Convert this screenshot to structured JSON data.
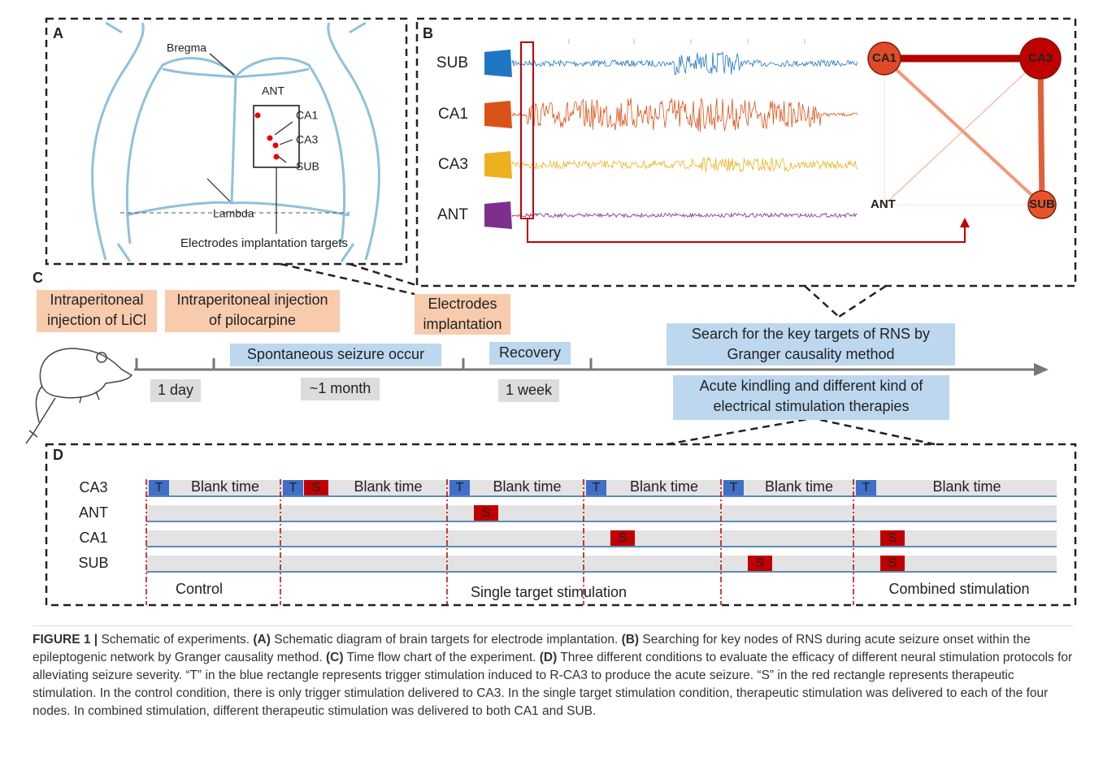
{
  "panel_a": {
    "letter": "A",
    "landmarks": [
      "Bregma",
      "Lambda"
    ],
    "targets": [
      "ANT",
      "CA1",
      "CA3",
      "SUB"
    ],
    "note": "Electrodes implantation targets"
  },
  "panel_b": {
    "letter": "B",
    "channels": [
      {
        "name": "SUB",
        "color": "#1f77c4"
      },
      {
        "name": "CA1",
        "color": "#d95319"
      },
      {
        "name": "CA3",
        "color": "#edb120"
      },
      {
        "name": "ANT",
        "color": "#7e2f8e"
      }
    ],
    "nodes": [
      "CA1",
      "CA3",
      "ANT",
      "SUB"
    ]
  },
  "panel_c": {
    "letter": "C",
    "steps": [
      {
        "lines": [
          "Intraperitoneal",
          "injection of LiCl"
        ]
      },
      {
        "lines": [
          "Intraperitoneal injection",
          "of pilocarpine"
        ]
      },
      {
        "lines": [
          "Electrodes",
          "implantation"
        ]
      }
    ],
    "events": [
      "Spontaneous seizure occur",
      "Recovery"
    ],
    "durations": [
      "1 day",
      "~1 month",
      "1 week"
    ],
    "outcomes": [
      {
        "lines": [
          "Search for the key targets of RNS by",
          "Granger causality method"
        ]
      },
      {
        "lines": [
          "Acute kindling and different kind of",
          "electrical stimulation therapies"
        ]
      }
    ]
  },
  "panel_d": {
    "letter": "D",
    "rows": [
      "CA3",
      "ANT",
      "CA1",
      "SUB"
    ],
    "columns": [
      {
        "cells": [
          [
            "T"
          ],
          [],
          [],
          []
        ],
        "blank": "Blank time"
      },
      {
        "cells": [
          [
            "T",
            "S"
          ],
          [],
          [],
          []
        ],
        "blank": "Blank time"
      },
      {
        "cells": [
          [
            "T"
          ],
          [
            "S"
          ],
          [],
          []
        ],
        "blank": "Blank time"
      },
      {
        "cells": [
          [
            "T"
          ],
          [],
          [
            "S"
          ],
          []
        ],
        "blank": "Blank time"
      },
      {
        "cells": [
          [
            "T"
          ],
          [],
          [],
          [
            "S"
          ]
        ],
        "blank": "Blank time"
      },
      {
        "cells": [
          [
            "T"
          ],
          [],
          [
            "S"
          ],
          [
            "S"
          ]
        ],
        "blank": "Blank time"
      }
    ],
    "groups": [
      "Control",
      "Single target stimulation",
      "Combined stimulation"
    ]
  },
  "caption": [
    {
      "text": "FIGURE 1 |",
      "bold": true
    },
    {
      "text": " Schematic of experiments. ",
      "bold": false
    },
    {
      "text": "(A)",
      "bold": true
    },
    {
      "text": " Schematic diagram of brain targets for electrode implantation. ",
      "bold": false
    },
    {
      "text": "(B)",
      "bold": true
    },
    {
      "text": " Searching for key nodes of RNS during acute seizure onset within the epileptogenic network by Granger causality method. ",
      "bold": false
    },
    {
      "text": "(C)",
      "bold": true
    },
    {
      "text": " Time flow chart of the experiment. ",
      "bold": false
    },
    {
      "text": "(D)",
      "bold": true
    },
    {
      "text": " Three different conditions to evaluate the efficacy of different neural stimulation protocols for alleviating seizure severity. “T” in the blue rectangle represents trigger stimulation induced to R-CA3 to produce the acute seizure. “S” in the red rectangle represents therapeutic stimulation. In the control condition, there is only trigger stimulation delivered to CA3. In the single target stimulation condition, therapeutic stimulation was delivered to each of the four nodes. In combined stimulation, different therapeutic stimulation was delivered to both CA1 and SUB.",
      "bold": false
    }
  ]
}
